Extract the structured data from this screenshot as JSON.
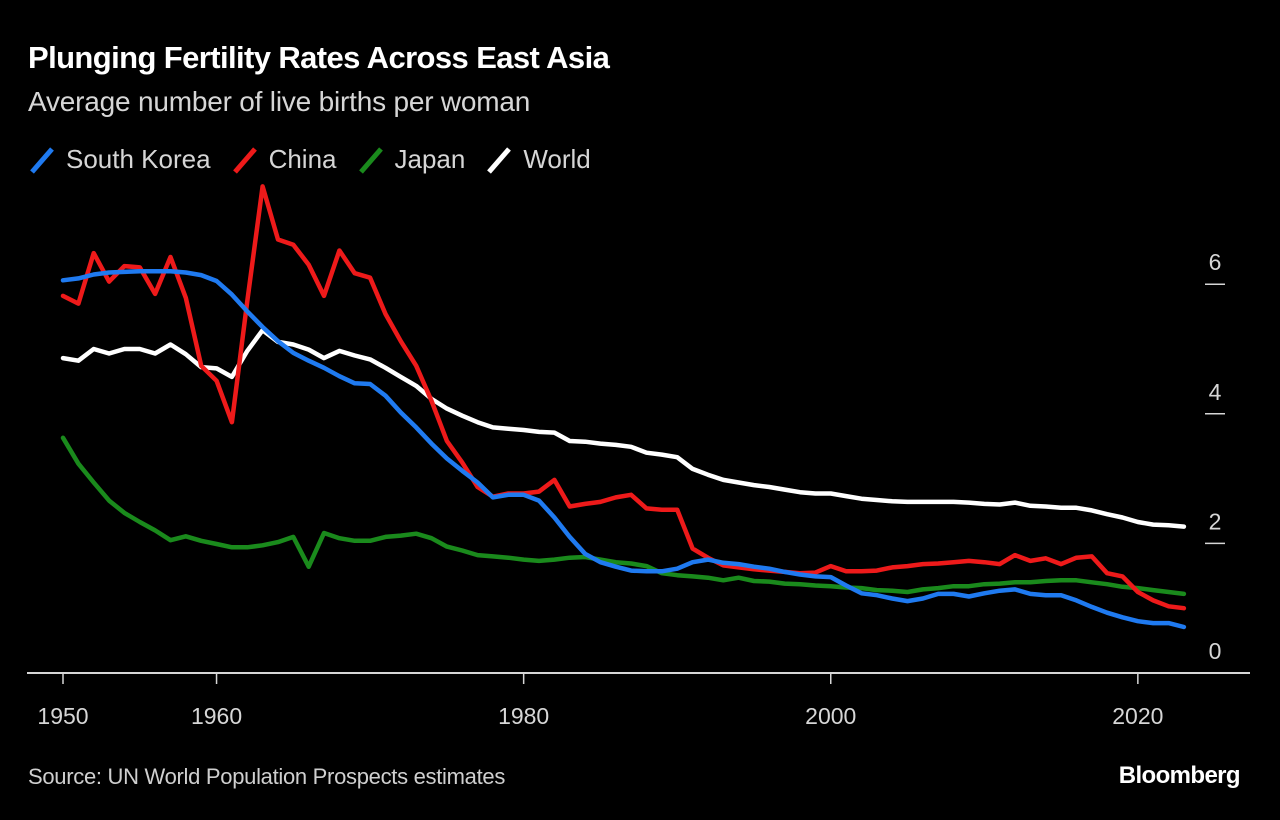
{
  "header": {
    "title": "Plunging Fertility Rates Across East Asia",
    "subtitle": "Average number of live births per woman"
  },
  "legend": [
    {
      "label": "South Korea",
      "color": "#1f7af0"
    },
    {
      "label": "China",
      "color": "#ee1a1a"
    },
    {
      "label": "Japan",
      "color": "#1a8a1c"
    },
    {
      "label": "World",
      "color": "#ffffff"
    }
  ],
  "footer": {
    "source": "Source: UN World Population Prospects estimates",
    "brand": "Bloomberg"
  },
  "chart_data": {
    "type": "line",
    "title": "Plunging Fertility Rates Across East Asia",
    "subtitle": "Average number of live births per woman",
    "xlabel": "",
    "ylabel": "",
    "xlim": [
      1948,
      2027
    ],
    "ylim": [
      0,
      7.6
    ],
    "x_ticks": [
      1950,
      1960,
      1980,
      2000,
      2020
    ],
    "x_tick_labels": [
      "1950",
      "1960",
      "1980",
      "2000",
      "2020"
    ],
    "y_ticks": [
      0,
      2,
      4,
      6
    ],
    "y_tick_labels": [
      "0",
      "2",
      "4",
      "6"
    ],
    "y_axis_side": "right",
    "grid": false,
    "legend_position": "top-left",
    "x_start": 1950,
    "x_end": 2023,
    "series": [
      {
        "name": "South Korea",
        "color": "#1f7af0",
        "values": [
          6.06,
          6.09,
          6.15,
          6.18,
          6.19,
          6.2,
          6.2,
          6.2,
          6.18,
          6.14,
          6.05,
          5.84,
          5.58,
          5.34,
          5.12,
          4.94,
          4.82,
          4.71,
          4.58,
          4.47,
          4.46,
          4.28,
          4.02,
          3.79,
          3.54,
          3.31,
          3.12,
          2.94,
          2.71,
          2.75,
          2.75,
          2.66,
          2.4,
          2.1,
          1.84,
          1.71,
          1.64,
          1.58,
          1.57,
          1.57,
          1.61,
          1.71,
          1.75,
          1.7,
          1.68,
          1.64,
          1.61,
          1.56,
          1.52,
          1.49,
          1.48,
          1.35,
          1.23,
          1.2,
          1.15,
          1.11,
          1.15,
          1.22,
          1.22,
          1.18,
          1.23,
          1.27,
          1.29,
          1.22,
          1.2,
          1.2,
          1.12,
          1.02,
          0.93,
          0.86,
          0.8,
          0.77,
          0.77,
          0.71
        ]
      },
      {
        "name": "China",
        "color": "#ee1a1a",
        "values": [
          5.82,
          5.7,
          6.48,
          6.04,
          6.28,
          6.26,
          5.85,
          6.42,
          5.79,
          4.74,
          4.51,
          3.87,
          5.74,
          7.51,
          6.69,
          6.61,
          6.3,
          5.82,
          6.52,
          6.17,
          6.1,
          5.54,
          5.12,
          4.74,
          4.2,
          3.58,
          3.25,
          2.87,
          2.72,
          2.77,
          2.77,
          2.8,
          2.98,
          2.57,
          2.61,
          2.64,
          2.71,
          2.75,
          2.54,
          2.52,
          2.52,
          1.92,
          1.78,
          1.66,
          1.63,
          1.6,
          1.58,
          1.56,
          1.54,
          1.55,
          1.65,
          1.57,
          1.57,
          1.58,
          1.63,
          1.65,
          1.68,
          1.69,
          1.71,
          1.73,
          1.71,
          1.68,
          1.82,
          1.73,
          1.77,
          1.68,
          1.78,
          1.8,
          1.54,
          1.49,
          1.25,
          1.12,
          1.03,
          1.0
        ]
      },
      {
        "name": "Japan",
        "color": "#1a8a1c",
        "values": [
          3.63,
          3.23,
          2.94,
          2.66,
          2.47,
          2.33,
          2.2,
          2.05,
          2.11,
          2.04,
          1.99,
          1.94,
          1.94,
          1.97,
          2.02,
          2.1,
          1.64,
          2.16,
          2.08,
          2.04,
          2.04,
          2.1,
          2.12,
          2.15,
          2.08,
          1.95,
          1.89,
          1.82,
          1.8,
          1.78,
          1.75,
          1.73,
          1.75,
          1.78,
          1.79,
          1.75,
          1.71,
          1.69,
          1.65,
          1.54,
          1.51,
          1.49,
          1.47,
          1.43,
          1.47,
          1.42,
          1.41,
          1.38,
          1.37,
          1.35,
          1.34,
          1.32,
          1.31,
          1.28,
          1.27,
          1.25,
          1.29,
          1.31,
          1.34,
          1.34,
          1.37,
          1.38,
          1.4,
          1.4,
          1.42,
          1.43,
          1.43,
          1.4,
          1.37,
          1.33,
          1.31,
          1.28,
          1.25,
          1.22
        ]
      },
      {
        "name": "World",
        "color": "#ffffff",
        "values": [
          4.86,
          4.82,
          5.0,
          4.93,
          5.0,
          5.0,
          4.93,
          5.07,
          4.92,
          4.72,
          4.7,
          4.57,
          4.97,
          5.29,
          5.11,
          5.07,
          4.99,
          4.86,
          4.97,
          4.9,
          4.84,
          4.71,
          4.57,
          4.43,
          4.23,
          4.08,
          3.97,
          3.87,
          3.79,
          3.77,
          3.75,
          3.72,
          3.71,
          3.58,
          3.57,
          3.54,
          3.52,
          3.49,
          3.4,
          3.37,
          3.33,
          3.15,
          3.06,
          2.98,
          2.94,
          2.9,
          2.87,
          2.83,
          2.79,
          2.77,
          2.77,
          2.73,
          2.69,
          2.67,
          2.65,
          2.64,
          2.64,
          2.64,
          2.64,
          2.63,
          2.61,
          2.6,
          2.63,
          2.58,
          2.57,
          2.55,
          2.55,
          2.51,
          2.45,
          2.4,
          2.33,
          2.29,
          2.28,
          2.26
        ]
      }
    ]
  }
}
